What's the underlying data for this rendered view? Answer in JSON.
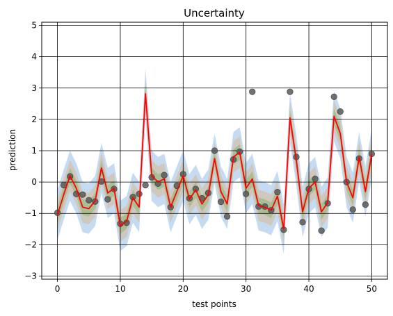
{
  "chart_data": {
    "type": "line",
    "title": "Uncertainty",
    "xlabel": "test points",
    "ylabel": "prediction",
    "xlim": [
      -2.5,
      52.5
    ],
    "ylim": [
      -3.1,
      5.1
    ],
    "grid": true,
    "legend": "none",
    "xticks": [
      0,
      10,
      20,
      30,
      40,
      50
    ],
    "yticks": [
      -3,
      -2,
      -1,
      0,
      1,
      2,
      3,
      4,
      5
    ],
    "x": [
      0,
      1,
      2,
      3,
      4,
      5,
      6,
      7,
      8,
      9,
      10,
      11,
      12,
      13,
      14,
      15,
      16,
      17,
      18,
      19,
      20,
      21,
      22,
      23,
      24,
      25,
      26,
      27,
      28,
      29,
      30,
      31,
      32,
      33,
      34,
      35,
      36,
      37,
      38,
      39,
      40,
      41,
      42,
      43,
      44,
      45,
      46,
      47,
      48,
      49,
      50
    ],
    "observed": [
      -0.98,
      -0.1,
      0.18,
      -0.38,
      -0.4,
      -0.58,
      -0.62,
      0.02,
      -0.55,
      -0.22,
      -1.33,
      -1.3,
      -0.48,
      -0.38,
      -0.1,
      0.15,
      -0.05,
      0.22,
      -0.8,
      -0.12,
      0.25,
      -0.52,
      -0.22,
      -0.52,
      -0.35,
      1.0,
      -0.63,
      -1.1,
      0.72,
      0.97,
      -0.38,
      2.88,
      -0.78,
      -0.78,
      -0.9,
      -0.32,
      -1.52,
      2.88,
      0.8,
      -1.28,
      -0.22,
      0.1,
      -1.55,
      -0.68,
      2.72,
      2.25,
      0.0,
      -0.88,
      0.75,
      -0.72,
      0.9
    ],
    "predicted": [
      -1.05,
      -0.4,
      0.2,
      -0.2,
      -0.8,
      -0.85,
      -0.6,
      0.45,
      -0.35,
      -0.2,
      -1.4,
      -1.25,
      -0.5,
      -0.8,
      2.82,
      0.2,
      0.0,
      0.1,
      -0.8,
      -0.3,
      0.2,
      -0.55,
      -0.25,
      -0.7,
      -0.4,
      0.75,
      -0.3,
      -0.7,
      0.8,
      0.95,
      -0.2,
      0.1,
      -0.75,
      -0.8,
      -0.9,
      -0.45,
      -1.5,
      2.05,
      0.7,
      -0.95,
      -0.2,
      0.0,
      -0.95,
      -0.65,
      2.1,
      1.55,
      0.0,
      -0.5,
      0.8,
      -0.3,
      0.9
    ],
    "series": [
      {
        "role": "observations",
        "color": "#595959"
      },
      {
        "role": "predicted-mean",
        "color": "#ff0000"
      },
      {
        "role": "band-outer",
        "color": "#a6c8ea"
      },
      {
        "role": "band-middle",
        "color": "#d9b893"
      },
      {
        "role": "band-inner",
        "color": "#8fb87a"
      }
    ],
    "band_half_widths": [
      0.8,
      0.5,
      0.25
    ]
  }
}
